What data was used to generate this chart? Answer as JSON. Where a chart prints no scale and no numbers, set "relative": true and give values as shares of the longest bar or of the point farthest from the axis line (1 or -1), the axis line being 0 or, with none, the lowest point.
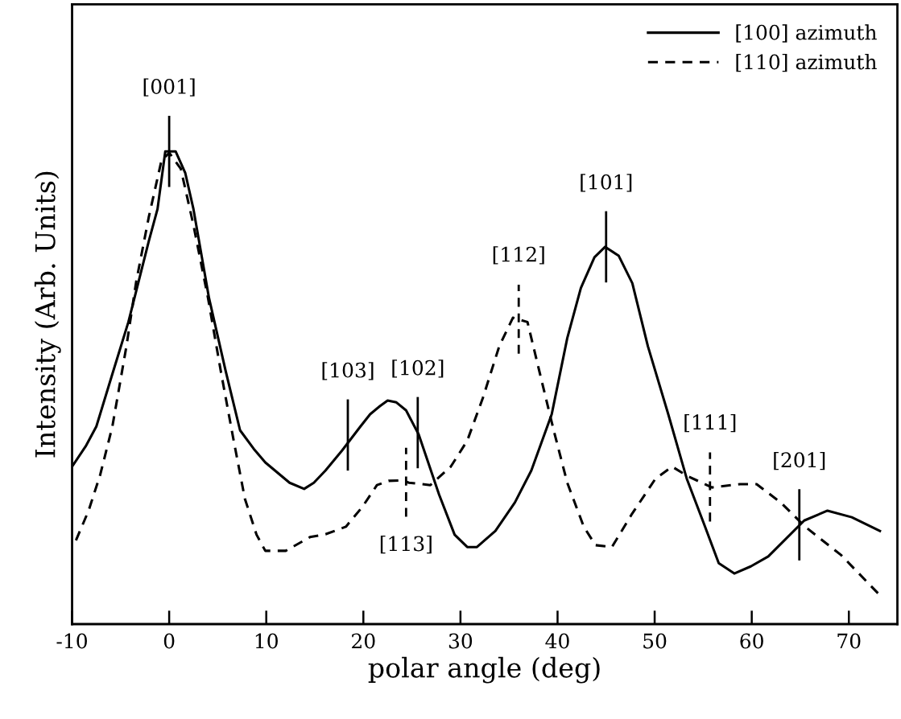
{
  "chart_data": {
    "type": "line",
    "relative": true,
    "xlabel": "polar angle (deg)",
    "ylabel": "Intensity (Arb. Units)",
    "xlim": [
      -10,
      75
    ],
    "xticks": [
      -10,
      0,
      10,
      20,
      30,
      40,
      50,
      60,
      70
    ],
    "tick_labels": "x",
    "legend": "top right",
    "grid": false,
    "marker": "none",
    "series": [
      {
        "name": "[100] azimuth",
        "color": "#000000",
        "line_style": "solid",
        "x": [
          -10,
          -8.6,
          -7.5,
          -5.85,
          -4.2,
          -2.1,
          -1.2,
          -0.4,
          0.66,
          1.66,
          2.5,
          4.1,
          5.8,
          7.3,
          8.7,
          9.9,
          12.4,
          13.9,
          14.9,
          16.1,
          17.8,
          19.7,
          20.7,
          21.7,
          22.5,
          23.4,
          24.4,
          25.7,
          27.8,
          29.4,
          30.7,
          31.7,
          33.6,
          35.6,
          37.3,
          39.4,
          41.0,
          42.4,
          43.8,
          44.9,
          46.3,
          47.7,
          49.3,
          51.4,
          53.3,
          55.1,
          56.6,
          58.2,
          59.9,
          61.7,
          65.4,
          67.8,
          70.3,
          73.2
        ],
        "values": [
          0.333,
          0.376,
          0.418,
          0.529,
          0.639,
          0.81,
          0.878,
          1.0,
          1.0,
          0.954,
          0.878,
          0.69,
          0.537,
          0.41,
          0.371,
          0.342,
          0.299,
          0.286,
          0.299,
          0.325,
          0.367,
          0.418,
          0.444,
          0.461,
          0.473,
          0.469,
          0.452,
          0.401,
          0.274,
          0.189,
          0.163,
          0.163,
          0.197,
          0.257,
          0.325,
          0.444,
          0.605,
          0.711,
          0.776,
          0.798,
          0.779,
          0.721,
          0.588,
          0.444,
          0.308,
          0.211,
          0.129,
          0.107,
          0.122,
          0.143,
          0.219,
          0.24,
          0.226,
          0.197
        ]
      },
      {
        "name": "[110] azimuth",
        "color": "#000000",
        "line_style": "dashed",
        "x": [
          -9.6,
          -8.3,
          -7.1,
          -5.85,
          -4.4,
          -3.4,
          -2.1,
          -0.8,
          0,
          1.2,
          2.5,
          4.0,
          5.3,
          6.6,
          7.8,
          9.0,
          9.9,
          12.0,
          14.5,
          16.1,
          18.2,
          19.9,
          21.4,
          22.6,
          24.0,
          24.7,
          26.9,
          29.0,
          30.7,
          32.3,
          34.0,
          35.4,
          36.9,
          38.1,
          39.6,
          41.0,
          42.7,
          43.9,
          45.6,
          47.6,
          50.1,
          51.8,
          53.4,
          55.9,
          58.8,
          60.5,
          63.0,
          65.5,
          69.2,
          73.2
        ],
        "values": [
          0.177,
          0.24,
          0.316,
          0.418,
          0.588,
          0.724,
          0.861,
          0.98,
          0.997,
          0.963,
          0.844,
          0.69,
          0.537,
          0.393,
          0.265,
          0.189,
          0.155,
          0.155,
          0.184,
          0.19,
          0.206,
          0.248,
          0.294,
          0.303,
          0.304,
          0.299,
          0.294,
          0.333,
          0.388,
          0.478,
          0.588,
          0.648,
          0.639,
          0.537,
          0.41,
          0.299,
          0.206,
          0.167,
          0.163,
          0.231,
          0.308,
          0.333,
          0.313,
          0.289,
          0.296,
          0.296,
          0.257,
          0.206,
          0.146,
          0.061
        ]
      }
    ],
    "annotations": [
      {
        "text": "[001]",
        "x": 0,
        "y": 1.0
      },
      {
        "text": "[103]",
        "x": 18.4,
        "y": 0.4
      },
      {
        "text": "[102]",
        "x": 25.6,
        "y": 0.405
      },
      {
        "text": "[113]",
        "x": 24.4,
        "y": 0.3
      },
      {
        "text": "[112]",
        "x": 36.0,
        "y": 0.645
      },
      {
        "text": "[101]",
        "x": 45.0,
        "y": 0.798
      },
      {
        "text": "[111]",
        "x": 55.7,
        "y": 0.29
      },
      {
        "text": "[201]",
        "x": 64.9,
        "y": 0.21
      }
    ]
  }
}
